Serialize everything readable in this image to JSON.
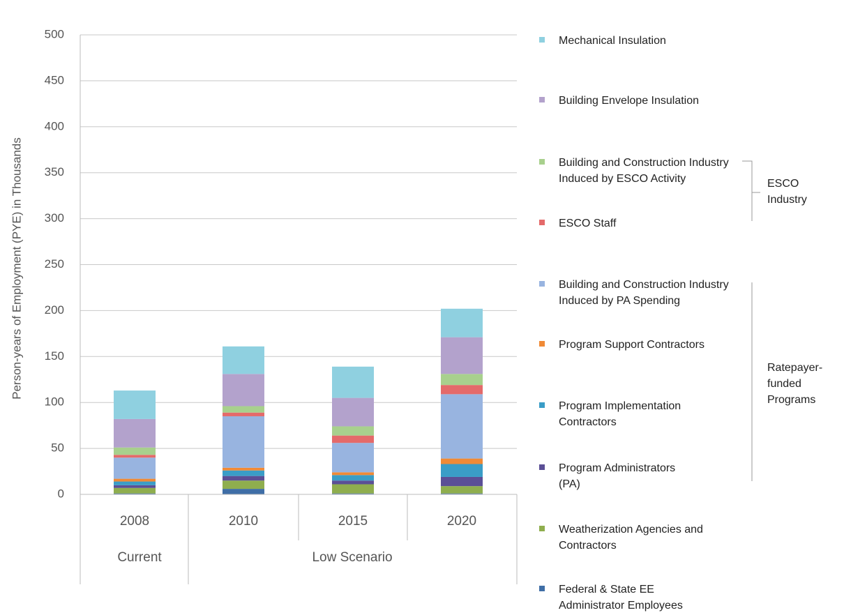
{
  "chart_data": {
    "type": "bar",
    "stacked": true,
    "categories": [
      "2008",
      "2010",
      "2015",
      "2020"
    ],
    "category_groups": [
      {
        "label": "Current",
        "categories": [
          "2008"
        ]
      },
      {
        "label": "Low Scenario",
        "categories": [
          "2010",
          "2015",
          "2020"
        ]
      }
    ],
    "ylabel": "Person-years of Employment (PYE) in Thousands",
    "ylim": [
      0,
      500
    ],
    "yticks": [
      "0",
      "50",
      "100",
      "150",
      "200",
      "250",
      "300",
      "350",
      "400",
      "450",
      "500"
    ],
    "grid": true,
    "legend_position": "right",
    "series": [
      {
        "name": "Federal & State EE Administrator Employees",
        "color": "#3f6ea6",
        "values": [
          1,
          6,
          1,
          1
        ]
      },
      {
        "name": "Weatherization Agencies and Contractors",
        "color": "#8fae4e",
        "values": [
          6,
          9,
          10,
          8
        ]
      },
      {
        "name": "Program Administrators (PA)",
        "color": "#5b4f96",
        "values": [
          3,
          5,
          4,
          10
        ]
      },
      {
        "name": "Program Implementation Contractors",
        "color": "#3a9dc7",
        "values": [
          4,
          6,
          6,
          14
        ]
      },
      {
        "name": "Program Support Contractors",
        "color": "#f08a36",
        "values": [
          3,
          3,
          3,
          6
        ]
      },
      {
        "name": "Building and Construction Industry Induced by PA Spending",
        "color": "#98b4e0",
        "values": [
          23,
          56,
          32,
          70
        ]
      },
      {
        "name": "ESCO Staff",
        "color": "#e46a6a",
        "values": [
          3,
          4,
          8,
          10
        ]
      },
      {
        "name": "Building and Construction Industry Induced by ESCO Activity",
        "color": "#a8d08d",
        "values": [
          8,
          7,
          10,
          12
        ]
      },
      {
        "name": "Building Envelope Insulation",
        "color": "#b3a2cc",
        "values": [
          31,
          35,
          31,
          40
        ]
      },
      {
        "name": "Mechanical Insulation",
        "color": "#8fd0e0",
        "values": [
          31,
          30,
          34,
          31
        ]
      }
    ],
    "brackets": [
      {
        "label": "ESCO Industry",
        "series": [
          "Building and Construction Industry Induced by ESCO Activity",
          "ESCO Staff"
        ]
      },
      {
        "label": "Ratepayer-funded Programs",
        "series": [
          "Building and Construction Industry Induced by PA Spending",
          "Program Support Contractors",
          "Program Implementation Contractors",
          "Program Administrators (PA)"
        ]
      }
    ]
  }
}
